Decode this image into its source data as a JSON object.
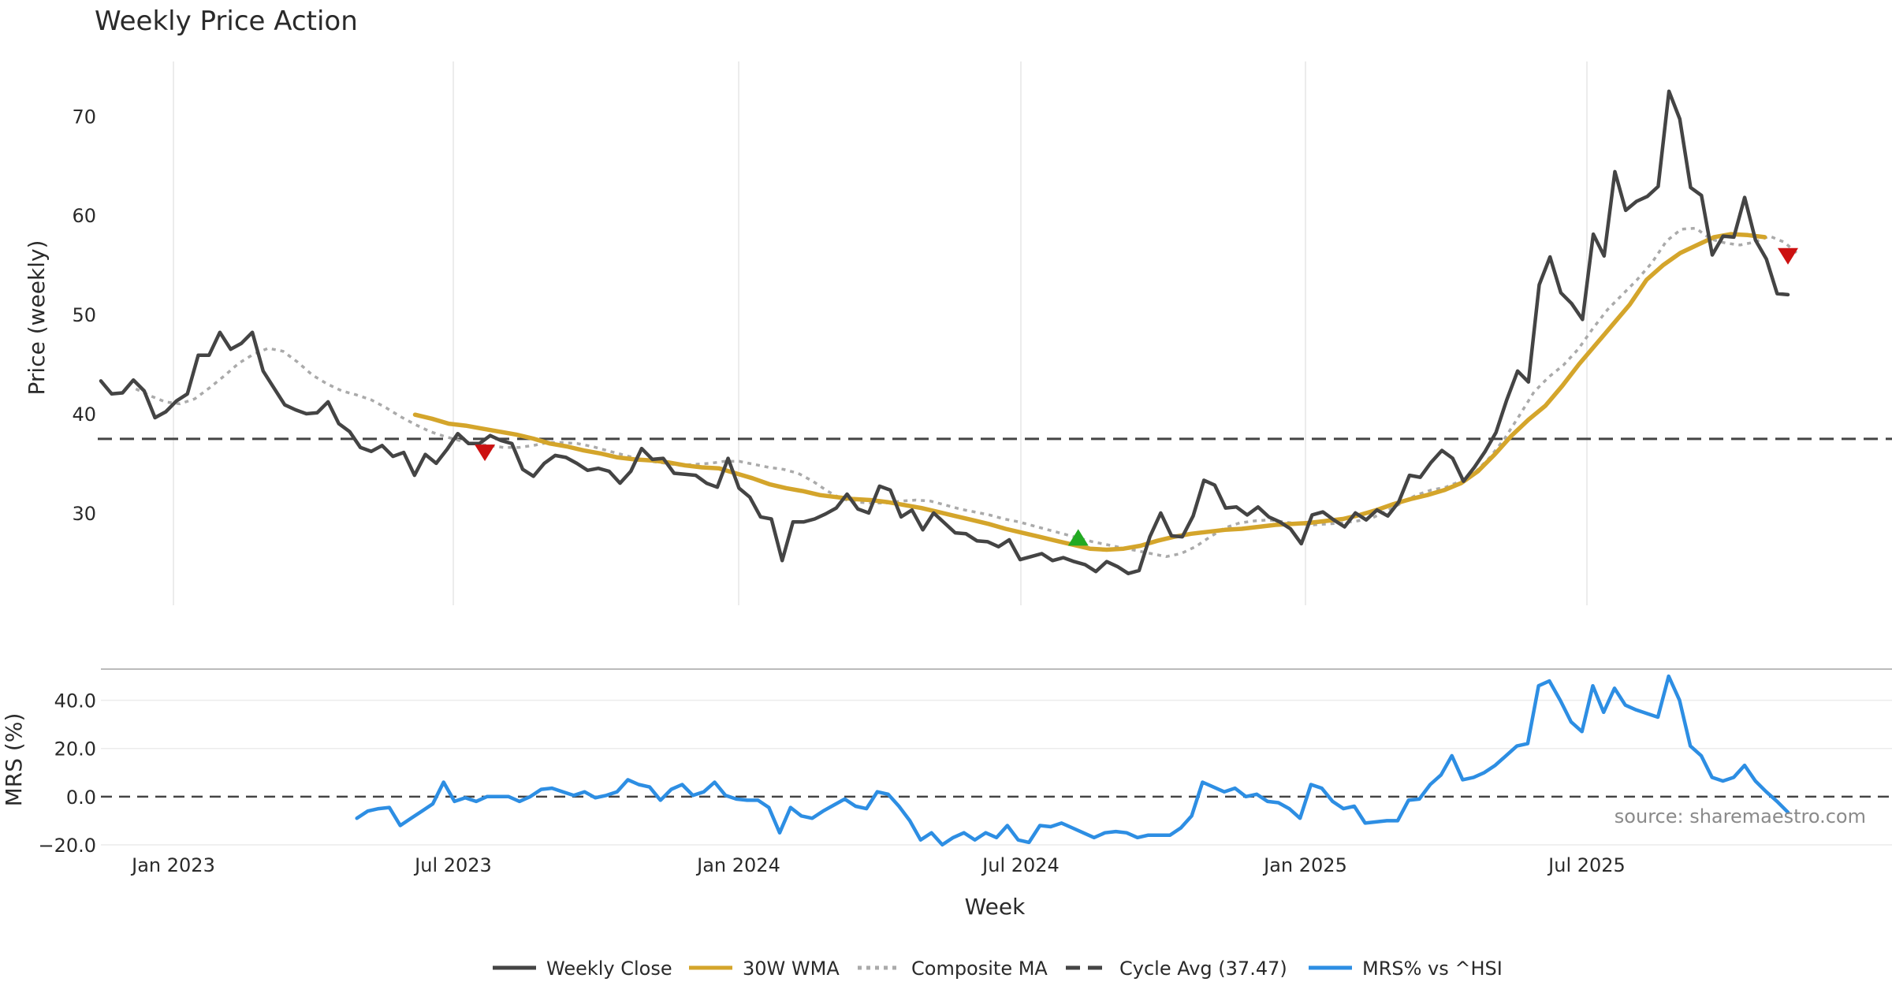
{
  "chart_data": {
    "type": "line",
    "title": "Weekly Price Action",
    "x_axis_label": "Week",
    "x_tick_labels": [
      "Jan 2023",
      "Jul 2023",
      "Jan 2024",
      "Jul 2024",
      "Jan 2025",
      "Jul 2025"
    ],
    "source_text": "source: sharemaestro.com",
    "price_panel": {
      "ylabel": "Price (weekly)",
      "ylim": [
        20.7,
        75.5
      ],
      "yticks": [
        30,
        40,
        50,
        60,
        70
      ],
      "cycle_avg": 37.47,
      "x_index_range": [
        0,
        145
      ],
      "weekly_close": [
        43.3,
        42.0,
        42.1,
        43.4,
        42.3,
        39.6,
        40.2,
        41.3,
        42.0,
        45.9,
        45.9,
        48.2,
        46.5,
        47.1,
        48.2,
        44.3,
        42.6,
        40.9,
        40.4,
        40.0,
        40.1,
        41.2,
        39.0,
        38.2,
        36.6,
        36.2,
        36.8,
        35.7,
        36.1,
        33.8,
        35.9,
        35.0,
        36.4,
        38.0,
        37.0,
        37.0,
        37.8,
        37.3,
        37.0,
        34.4,
        33.7,
        35.0,
        35.8,
        35.6,
        35.0,
        34.3,
        34.5,
        34.2,
        33.0,
        34.2,
        36.5,
        35.4,
        35.5,
        34.0,
        33.9,
        33.8,
        33.0,
        32.6,
        35.5,
        32.5,
        31.6,
        29.6,
        29.4,
        25.2,
        29.1,
        29.1,
        29.4,
        29.9,
        30.5,
        31.9,
        30.4,
        30.0,
        32.7,
        32.3,
        29.6,
        30.3,
        28.3,
        30.0,
        29.0,
        28.0,
        27.9,
        27.2,
        27.1,
        26.6,
        27.3,
        25.3,
        25.6,
        25.9,
        25.2,
        25.5,
        25.1,
        24.8,
        24.1,
        25.1,
        24.6,
        23.9,
        24.2,
        27.6,
        30.0,
        27.7,
        27.6,
        29.7,
        33.3,
        32.8,
        30.5,
        30.6,
        29.8,
        30.6,
        29.6,
        29.1,
        28.4,
        26.9,
        29.8,
        30.1,
        29.3,
        28.6,
        30.0,
        29.3,
        30.3,
        29.7,
        31.1,
        33.8,
        33.6,
        35.1,
        36.3,
        35.5,
        33.2,
        34.6,
        36.2,
        38.1,
        41.4,
        44.3,
        43.2,
        53.0,
        55.8,
        52.2,
        51.1,
        49.5,
        58.1,
        55.9,
        64.4,
        60.5,
        61.4,
        61.9,
        62.9,
        72.5
      ],
      "weekly_close_tail": [
        69.7,
        62.8,
        62.0,
        56.0,
        57.9,
        57.8,
        61.8,
        57.5,
        55.6,
        52.1,
        52.0
      ],
      "wma_30w": [
        39.9,
        39.5,
        39.0,
        38.8,
        38.5,
        38.2,
        37.9,
        37.5,
        37.0,
        36.7,
        36.3,
        36.0,
        35.6,
        35.4,
        35.3,
        35.1,
        34.8,
        34.6,
        34.5,
        34.0,
        33.5,
        32.9,
        32.5,
        32.2,
        31.8,
        31.6,
        31.4,
        31.3,
        31.1,
        30.8,
        30.5,
        30.1,
        29.7,
        29.3,
        28.9,
        28.4,
        28.0,
        27.6,
        27.2,
        26.8,
        26.4,
        26.3,
        26.4,
        26.7,
        27.2,
        27.6,
        27.9,
        28.1,
        28.3,
        28.4,
        28.6,
        28.8,
        28.9,
        29.0,
        29.2,
        29.4,
        29.8,
        30.3,
        30.9,
        31.4,
        31.8,
        32.3,
        33.0,
        34.2,
        35.9,
        37.8,
        39.4,
        40.8,
        42.8,
        45.0,
        47.0,
        49.0,
        51.0,
        53.5,
        55.0,
        56.2,
        57.0,
        57.8,
        58.1,
        58.0,
        57.8
      ],
      "wma_30w_x_start": 27,
      "wma_30w_x_step": 1.45,
      "composite_ma": [
        42.5,
        41.8,
        41.2,
        41.0,
        41.5,
        42.6,
        43.8,
        45.1,
        46.0,
        46.6,
        46.3,
        45.2,
        43.9,
        43.0,
        42.3,
        41.9,
        41.4,
        40.6,
        39.7,
        38.9,
        38.2,
        37.7,
        37.3,
        37.0,
        36.8,
        36.6,
        36.6,
        36.8,
        37.1,
        37.1,
        37.0,
        36.7,
        36.3,
        35.9,
        35.5,
        35.2,
        35.0,
        34.8,
        34.9,
        35.0,
        35.2,
        35.2,
        34.9,
        34.6,
        34.4,
        34.0,
        33.2,
        32.2,
        31.4,
        31.1,
        31.0,
        31.0,
        31.2,
        31.3,
        31.2,
        30.8,
        30.4,
        30.1,
        29.8,
        29.4,
        29.1,
        28.7,
        28.3,
        27.9,
        27.5,
        27.1,
        26.8,
        26.5,
        26.2,
        25.9,
        25.6,
        25.9,
        26.6,
        27.6,
        28.5,
        29.0,
        29.2,
        29.3,
        29.1,
        28.9,
        28.8,
        28.9,
        29.0,
        29.2,
        29.5,
        30.2,
        31.0,
        31.8,
        32.3,
        32.6,
        33.2,
        34.1,
        35.6,
        37.5,
        39.8,
        42.2,
        43.7,
        44.9,
        46.5,
        48.6,
        50.5,
        52.0,
        53.5,
        55.2,
        57.4,
        58.6,
        58.7,
        57.6,
        57.2,
        57.0,
        57.3,
        57.9,
        57.3,
        56.0
      ],
      "composite_ma_x_start": 3,
      "composite_ma_x_step": 1.265,
      "signals": [
        {
          "type": "sell",
          "x": 33,
          "y": 36.1
        },
        {
          "type": "buy",
          "x": 84,
          "y": 27.5
        },
        {
          "type": "sell",
          "x": 145,
          "y": 55.9
        }
      ]
    },
    "mrs_panel": {
      "ylabel": "MRS (%)",
      "ylim": [
        -21,
        50
      ],
      "yticks": [
        -20.0,
        0.0,
        20.0,
        40.0
      ],
      "ytick_labels": [
        "−20.0",
        "0.0",
        "20.0",
        "40.0"
      ],
      "zero_line": 0,
      "mrs_x_start": 22,
      "mrs_vs_hsi": [
        -9,
        -6,
        -5,
        -4.5,
        -12,
        -9,
        -6,
        -3,
        6,
        -2,
        -0.5,
        -2,
        0,
        0,
        0,
        -2,
        0,
        3,
        3.5,
        2,
        0.5,
        2,
        -0.5,
        0.5,
        2,
        7,
        5,
        4,
        -1.5,
        3,
        5,
        0.5,
        2,
        6,
        0.5,
        -1,
        -1.5,
        -1.5,
        -4.5,
        -15,
        -4.5,
        -8,
        -9,
        -6,
        -3.5,
        -1,
        -4,
        -5,
        2,
        1,
        -4,
        -10,
        -18,
        -15,
        -20,
        -17,
        -15,
        -18,
        -15,
        -17,
        -12,
        -18,
        -19,
        -12,
        -12.5,
        -11,
        -13,
        -15,
        -17,
        -15,
        -14.5,
        -15,
        -17,
        -16,
        -16,
        -16,
        -13,
        -8,
        6,
        4,
        2,
        3.5,
        0,
        1,
        -2,
        -2.5,
        -5,
        -9,
        5,
        3.5,
        -2,
        -5,
        -4,
        -11,
        -10.5,
        -10,
        -10,
        -1.5,
        -1,
        5,
        9,
        17,
        7,
        8,
        10,
        13,
        17,
        21,
        22,
        46,
        48,
        40,
        31,
        27,
        46,
        35,
        45,
        38,
        36,
        34.5,
        33,
        50,
        40,
        21,
        17,
        8,
        6.5,
        8,
        13,
        6.5,
        2,
        -2,
        -6.5
      ]
    },
    "legend": [
      {
        "label": "Weekly Close",
        "color": "#444444",
        "style": "solid"
      },
      {
        "label": "30W WMA",
        "color": "#d4a52b",
        "style": "solid"
      },
      {
        "label": "Composite MA",
        "color": "#aaaaaa",
        "style": "dotted"
      },
      {
        "label": "Cycle Avg (37.47)",
        "color": "#444444",
        "style": "dashed"
      },
      {
        "label": "MRS% vs ^HSI",
        "color": "#2d8ee3",
        "style": "solid"
      }
    ],
    "colors": {
      "weekly_close": "#444444",
      "wma": "#d4a52b",
      "composite": "#aaaaaa",
      "cycle": "#444444",
      "mrs": "#2d8ee3",
      "sell_marker": "#cc1111",
      "buy_marker": "#22aa22",
      "grid": "#ececec"
    }
  }
}
